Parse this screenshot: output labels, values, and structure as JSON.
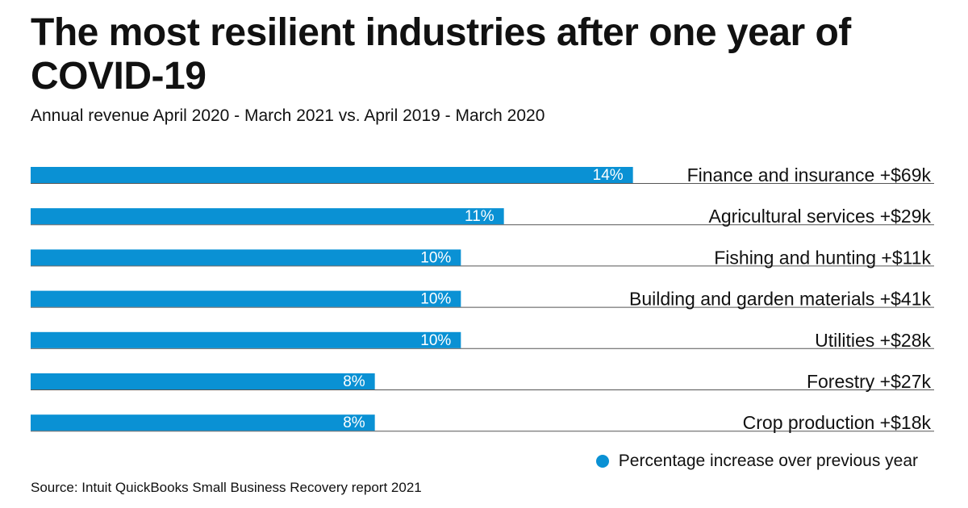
{
  "title": "The most resilient industries after one year of COVID-19",
  "subtitle": "Annual revenue April 2020 - March 2021 vs. April 2019 - March 2020",
  "source": "Source: Intuit QuickBooks Small Business Recovery report 2021",
  "legend": {
    "label": "Percentage increase over previous year",
    "color": "#0a91d4"
  },
  "colors": {
    "bar": "#0a91d4",
    "rule": "#555555"
  },
  "chart_data": {
    "type": "bar",
    "orientation": "horizontal",
    "categories": [
      "Finance and insurance +$69k",
      "Agricultural services +$29k",
      "Fishing and hunting +$11k",
      "Building and garden materials +$41k",
      "Utilities +$28k",
      "Forestry +$27k",
      "Crop production +$18k"
    ],
    "values": [
      14,
      11,
      10,
      10,
      10,
      8,
      8
    ],
    "value_labels": [
      "14%",
      "11%",
      "10%",
      "10%",
      "10%",
      "8%",
      "8%"
    ],
    "unit": "%",
    "xlim": [
      0,
      21
    ],
    "grid": false,
    "legend_position": "bottom-right"
  }
}
